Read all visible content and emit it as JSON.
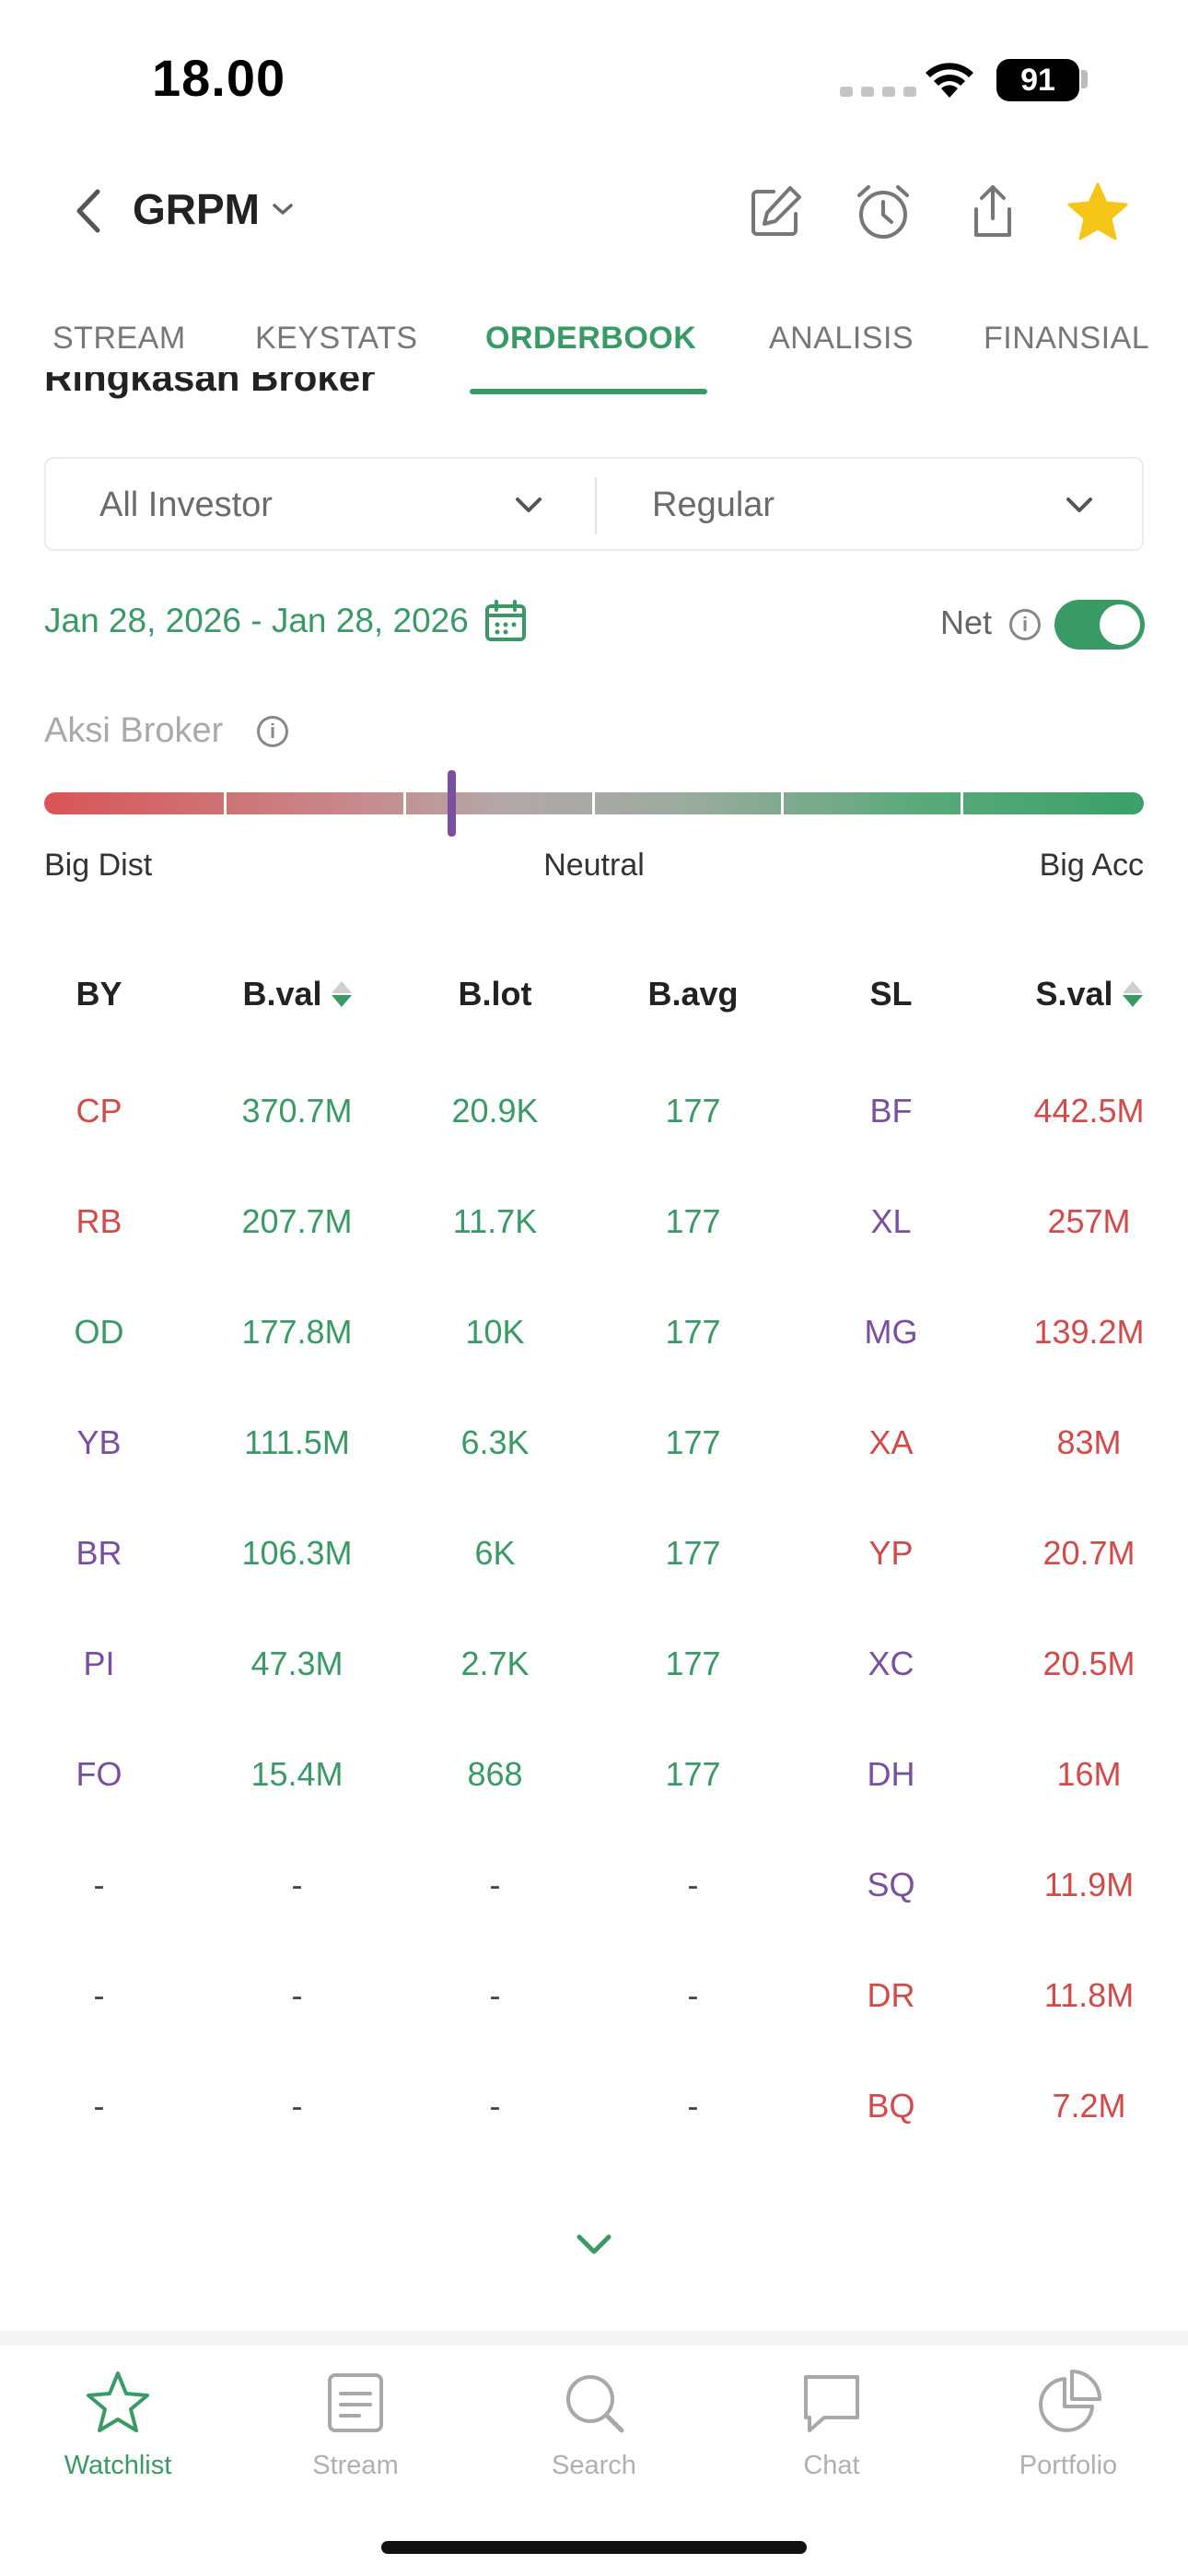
{
  "status_bar": {
    "time": "18.00",
    "battery": "91"
  },
  "header": {
    "ticker": "GRPM"
  },
  "tabs": [
    {
      "label": "STREAM"
    },
    {
      "label": "KEYSTATS"
    },
    {
      "label": "ORDERBOOK"
    },
    {
      "label": "ANALISIS"
    },
    {
      "label": "FINANSIAL"
    }
  ],
  "active_tab": "ORDERBOOK",
  "section_title": "Ringkasan Broker",
  "filters": {
    "investor": "All Investor",
    "market": "Regular"
  },
  "date_range": "Jan 28, 2026 - Jan 28, 2026",
  "net": {
    "label": "Net",
    "enabled": true
  },
  "aksi_broker": {
    "label": "Aksi Broker",
    "level_fraction": 0.37,
    "labels": {
      "left": "Big Dist",
      "middle": "Neutral",
      "right": "Big Acc"
    }
  },
  "table": {
    "headers": [
      "BY",
      "B.val",
      "B.lot",
      "B.avg",
      "SL",
      "S.val"
    ],
    "rows": [
      [
        "CP",
        "370.7M",
        "20.9K",
        "177",
        "BF",
        "442.5M"
      ],
      [
        "RB",
        "207.7M",
        "11.7K",
        "177",
        "XL",
        "257M"
      ],
      [
        "OD",
        "177.8M",
        "10K",
        "177",
        "MG",
        "139.2M"
      ],
      [
        "YB",
        "111.5M",
        "6.3K",
        "177",
        "XA",
        "83M"
      ],
      [
        "BR",
        "106.3M",
        "6K",
        "177",
        "YP",
        "20.7M"
      ],
      [
        "PI",
        "47.3M",
        "2.7K",
        "177",
        "XC",
        "20.5M"
      ],
      [
        "FO",
        "15.4M",
        "868",
        "177",
        "DH",
        "16M"
      ],
      [
        "-",
        "-",
        "-",
        "-",
        "SQ",
        "11.9M"
      ],
      [
        "-",
        "-",
        "-",
        "-",
        "DR",
        "11.8M"
      ],
      [
        "-",
        "-",
        "-",
        "-",
        "BQ",
        "7.2M"
      ]
    ],
    "buyer_colors": [
      "red",
      "red",
      "green",
      "purple",
      "purple",
      "purple",
      "purple",
      "dash",
      "dash",
      "dash"
    ],
    "seller_colors": [
      "purple",
      "purple",
      "purple",
      "red",
      "red",
      "purple",
      "purple",
      "purple",
      "red",
      "red"
    ]
  },
  "bottom_nav": [
    {
      "label": "Watchlist",
      "icon": "star-icon",
      "active": true
    },
    {
      "label": "Stream",
      "icon": "document-icon",
      "active": false
    },
    {
      "label": "Search",
      "icon": "search-icon",
      "active": false
    },
    {
      "label": "Chat",
      "icon": "chat-icon",
      "active": false
    },
    {
      "label": "Portfolio",
      "icon": "pie-chart-icon",
      "active": false
    }
  ],
  "colors": {
    "accent_green": "#3a9a66",
    "red": "#d24a4a",
    "purple": "#7a4fa0",
    "star": "#f5c518"
  }
}
